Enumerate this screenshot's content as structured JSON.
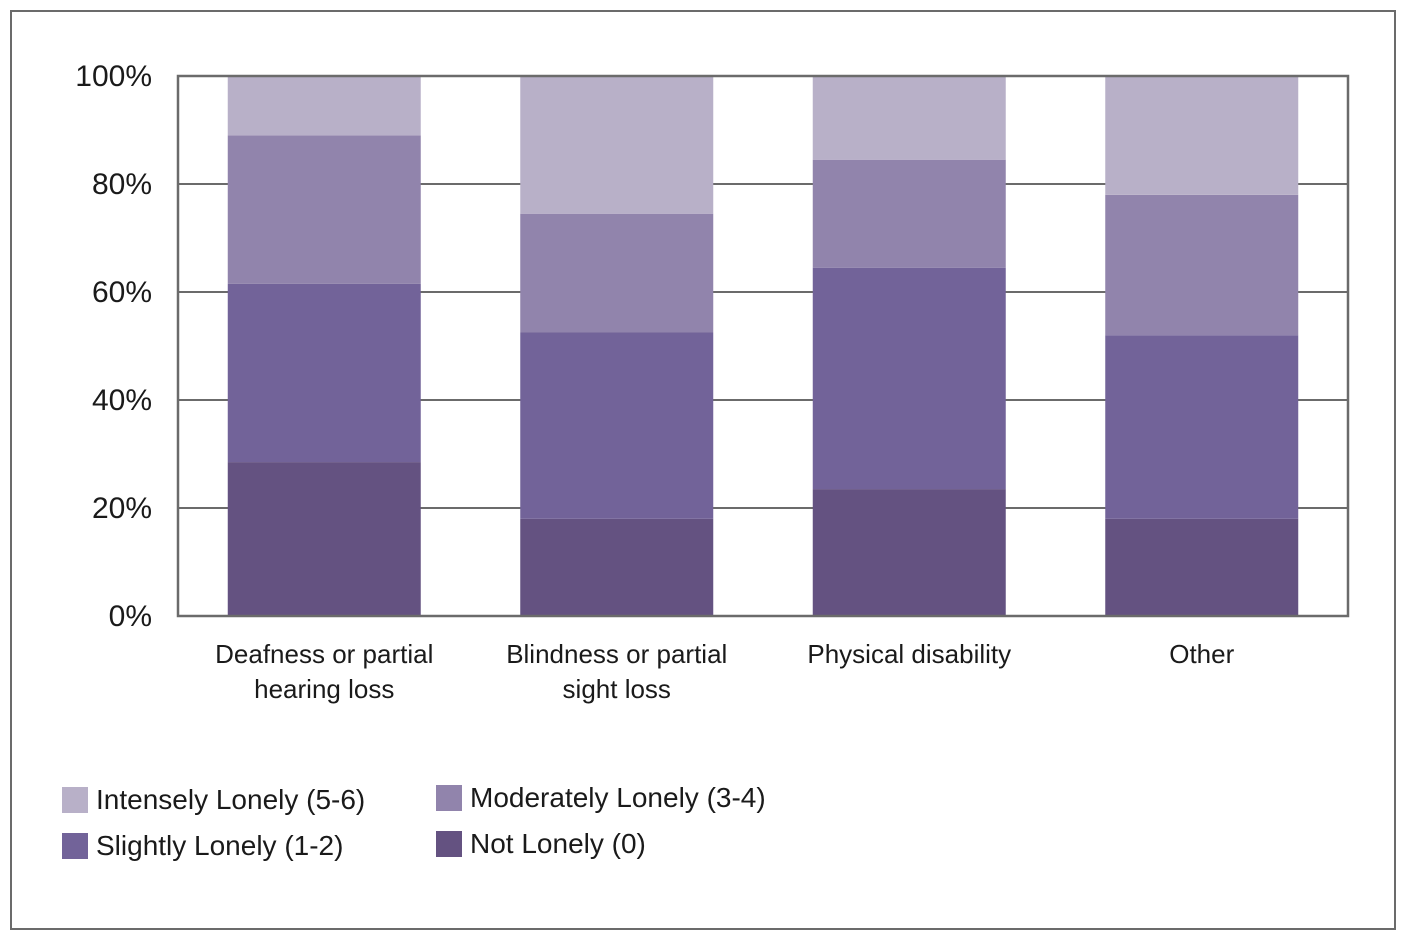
{
  "chart_data": {
    "type": "bar",
    "stacked": true,
    "categories": [
      [
        "Deafness or partial",
        "hearing loss"
      ],
      [
        "Blindness or partial",
        "sight loss"
      ],
      [
        "Physical disability"
      ],
      [
        "Other"
      ]
    ],
    "series": [
      {
        "name": "Not Lonely (0)",
        "color": "#645281",
        "values": [
          28.5,
          18,
          23.5,
          18
        ]
      },
      {
        "name": "Slightly Lonely (1-2)",
        "color": "#726399",
        "values": [
          33,
          34.5,
          41,
          34
        ]
      },
      {
        "name": "Moderately Lonely (3-4)",
        "color": "#9184ac",
        "values": [
          27.5,
          22,
          20,
          26
        ]
      },
      {
        "name": "Intensely Lonely (5-6)",
        "color": "#b8b0c8",
        "values": [
          11,
          25.5,
          15.5,
          22
        ]
      }
    ],
    "ylim": [
      0,
      100
    ],
    "yticks": [
      "0%",
      "20%",
      "40%",
      "60%",
      "80%",
      "100%"
    ],
    "grid": true,
    "legend_placement": "bottom-left"
  },
  "legend": [
    {
      "label": "Intensely Lonely (5-6)",
      "color": "#b8b0c8"
    },
    {
      "label": "Moderately Lonely (3-4)",
      "color": "#9184ac"
    },
    {
      "label": "Slightly Lonely (1-2)",
      "color": "#726399"
    },
    {
      "label": "Not Lonely (0)",
      "color": "#645281"
    }
  ]
}
